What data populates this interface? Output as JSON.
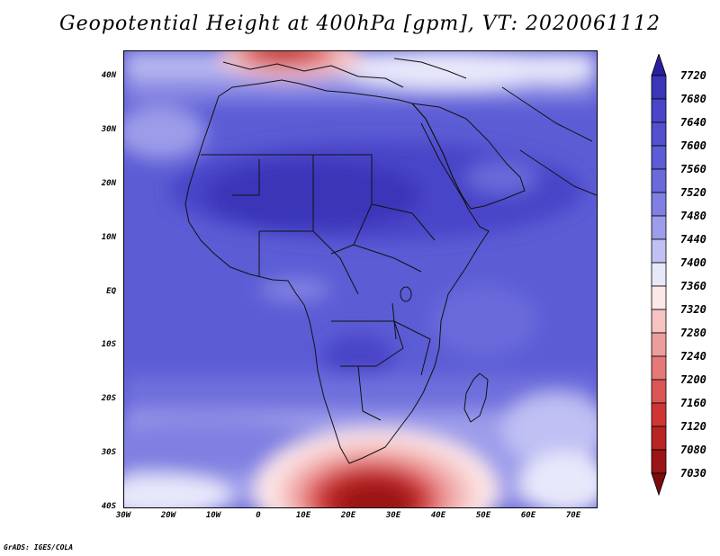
{
  "title": "Geopotential Height at 400hPa [gpm], VT: 2020061112",
  "footer": "GrADS: IGES/COLA",
  "map": {
    "lat_labels": [
      "40N",
      "30N",
      "20N",
      "10N",
      "EQ",
      "10S",
      "20S",
      "30S",
      "40S"
    ],
    "lon_labels": [
      "30W",
      "20W",
      "10W",
      "0",
      "10E",
      "20E",
      "30E",
      "40E",
      "50E",
      "60E",
      "70E"
    ]
  },
  "colorbar": {
    "levels": [
      "7720",
      "7680",
      "7640",
      "7600",
      "7560",
      "7520",
      "7480",
      "7440",
      "7400",
      "7360",
      "7320",
      "7280",
      "7240",
      "7200",
      "7160",
      "7120",
      "7080",
      "7030"
    ],
    "colors": [
      "#2a1f9e",
      "#3b35b8",
      "#4a45c8",
      "#5250cf",
      "#5c5cd5",
      "#6a6adb",
      "#8080e2",
      "#9c9cea",
      "#c0c0f4",
      "#e8e8fb",
      "#fde8e8",
      "#f6c2c2",
      "#ee9d9d",
      "#e57878",
      "#dc5555",
      "#cf3535",
      "#b82424",
      "#9a1515",
      "#7a0c0c"
    ]
  }
}
